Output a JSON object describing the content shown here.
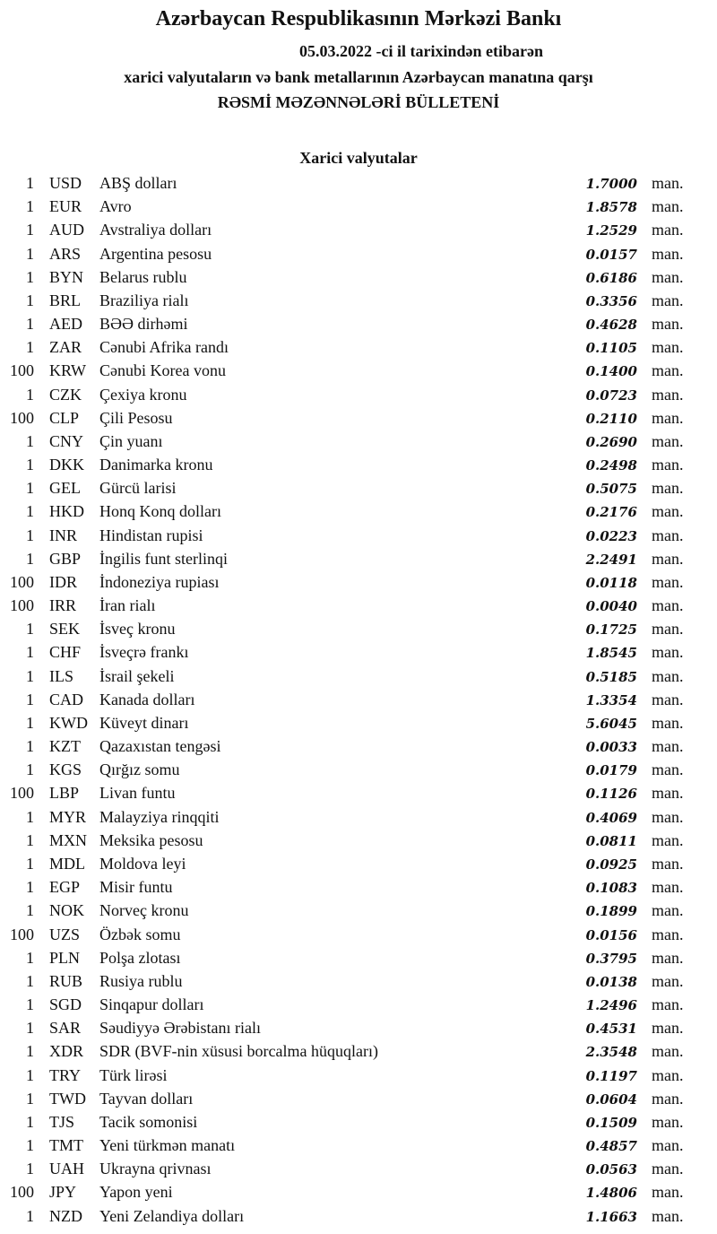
{
  "header": {
    "title": "Azərbaycan Respublikasının Mərkəzi Bankı",
    "date_line": "05.03.2022 -ci il tarixindən etibarən",
    "subtitle": "xarici valyutaların və bank metallarının Azərbaycan manatına qarşı",
    "bulletin": "RƏSMİ MƏZƏNNƏLƏRİ BÜLLETENİ"
  },
  "section_title": "Xarici valyutalar",
  "unit": "man.",
  "rates": [
    {
      "qty": "1",
      "code": "USD",
      "name": "ABŞ dolları",
      "value": "1.7000"
    },
    {
      "qty": "1",
      "code": "EUR",
      "name": "Avro",
      "value": "1.8578"
    },
    {
      "qty": "1",
      "code": "AUD",
      "name": "Avstraliya dolları",
      "value": "1.2529"
    },
    {
      "qty": "1",
      "code": "ARS",
      "name": "Argentina pesosu",
      "value": "0.0157"
    },
    {
      "qty": "1",
      "code": "BYN",
      "name": "Belarus rublu",
      "value": "0.6186"
    },
    {
      "qty": "1",
      "code": "BRL",
      "name": "Braziliya rialı",
      "value": "0.3356"
    },
    {
      "qty": "1",
      "code": "AED",
      "name": "BƏƏ dirhəmi",
      "value": "0.4628"
    },
    {
      "qty": "1",
      "code": "ZAR",
      "name": "Cənubi Afrika randı",
      "value": "0.1105"
    },
    {
      "qty": "100",
      "code": "KRW",
      "name": "Cənubi Korea vonu",
      "value": "0.1400"
    },
    {
      "qty": "1",
      "code": "CZK",
      "name": "Çexiya kronu",
      "value": "0.0723"
    },
    {
      "qty": "100",
      "code": "CLP",
      "name": "Çili Pesosu",
      "value": "0.2110"
    },
    {
      "qty": "1",
      "code": "CNY",
      "name": "Çin yuanı",
      "value": "0.2690"
    },
    {
      "qty": "1",
      "code": "DKK",
      "name": "Danimarka kronu",
      "value": "0.2498"
    },
    {
      "qty": "1",
      "code": "GEL",
      "name": "Gürcü larisi",
      "value": "0.5075"
    },
    {
      "qty": "1",
      "code": "HKD",
      "name": "Honq Konq dolları",
      "value": "0.2176"
    },
    {
      "qty": "1",
      "code": "INR",
      "name": "Hindistan rupisi",
      "value": "0.0223"
    },
    {
      "qty": "1",
      "code": "GBP",
      "name": "İngilis funt sterlinqi",
      "value": "2.2491"
    },
    {
      "qty": "100",
      "code": "IDR",
      "name": "İndoneziya rupiası",
      "value": "0.0118"
    },
    {
      "qty": "100",
      "code": "IRR",
      "name": "İran rialı",
      "value": "0.0040"
    },
    {
      "qty": "1",
      "code": "SEK",
      "name": "İsveç kronu",
      "value": "0.1725"
    },
    {
      "qty": "1",
      "code": "CHF",
      "name": "İsveçrə frankı",
      "value": "1.8545"
    },
    {
      "qty": "1",
      "code": "ILS",
      "name": "İsrail şekeli",
      "value": "0.5185"
    },
    {
      "qty": "1",
      "code": "CAD",
      "name": "Kanada dolları",
      "value": "1.3354"
    },
    {
      "qty": "1",
      "code": "KWD",
      "name": "Küveyt dinarı",
      "value": "5.6045"
    },
    {
      "qty": "1",
      "code": "KZT",
      "name": "Qazaxıstan tengəsi",
      "value": "0.0033"
    },
    {
      "qty": "1",
      "code": "KGS",
      "name": "Qırğız somu",
      "value": "0.0179"
    },
    {
      "qty": "100",
      "code": "LBP",
      "name": "Livan funtu",
      "value": "0.1126"
    },
    {
      "qty": "1",
      "code": "MYR",
      "name": "Malayziya rinqqiti",
      "value": "0.4069"
    },
    {
      "qty": "1",
      "code": "MXN",
      "name": "Meksika pesosu",
      "value": "0.0811"
    },
    {
      "qty": "1",
      "code": "MDL",
      "name": "Moldova leyi",
      "value": "0.0925"
    },
    {
      "qty": "1",
      "code": "EGP",
      "name": "Misir funtu",
      "value": "0.1083"
    },
    {
      "qty": "1",
      "code": "NOK",
      "name": "Norveç kronu",
      "value": "0.1899"
    },
    {
      "qty": "100",
      "code": "UZS",
      "name": "Özbək somu",
      "value": "0.0156"
    },
    {
      "qty": "1",
      "code": "PLN",
      "name": "Polşa zlotası",
      "value": "0.3795"
    },
    {
      "qty": "1",
      "code": "RUB",
      "name": "Rusiya rublu",
      "value": "0.0138"
    },
    {
      "qty": "1",
      "code": "SGD",
      "name": "Sinqapur dolları",
      "value": "1.2496"
    },
    {
      "qty": "1",
      "code": "SAR",
      "name": "Səudiyyə Ərəbistanı rialı",
      "value": "0.4531"
    },
    {
      "qty": "1",
      "code": "XDR",
      "name": "SDR (BVF-nin xüsusi borcalma hüquqları)",
      "value": "2.3548"
    },
    {
      "qty": "1",
      "code": "TRY",
      "name": "Türk lirəsi",
      "value": "0.1197"
    },
    {
      "qty": "1",
      "code": "TWD",
      "name": "Tayvan dolları",
      "value": "0.0604"
    },
    {
      "qty": "1",
      "code": "TJS",
      "name": "Tacik somonisi",
      "value": "0.1509"
    },
    {
      "qty": "1",
      "code": "TMT",
      "name": "Yeni türkmən manatı",
      "value": "0.4857"
    },
    {
      "qty": "1",
      "code": "UAH",
      "name": "Ukrayna qrivnası",
      "value": "0.0563"
    },
    {
      "qty": "100",
      "code": "JPY",
      "name": "Yapon yeni",
      "value": "1.4806"
    },
    {
      "qty": "1",
      "code": "NZD",
      "name": "Yeni Zelandiya dolları",
      "value": "1.1663"
    }
  ]
}
